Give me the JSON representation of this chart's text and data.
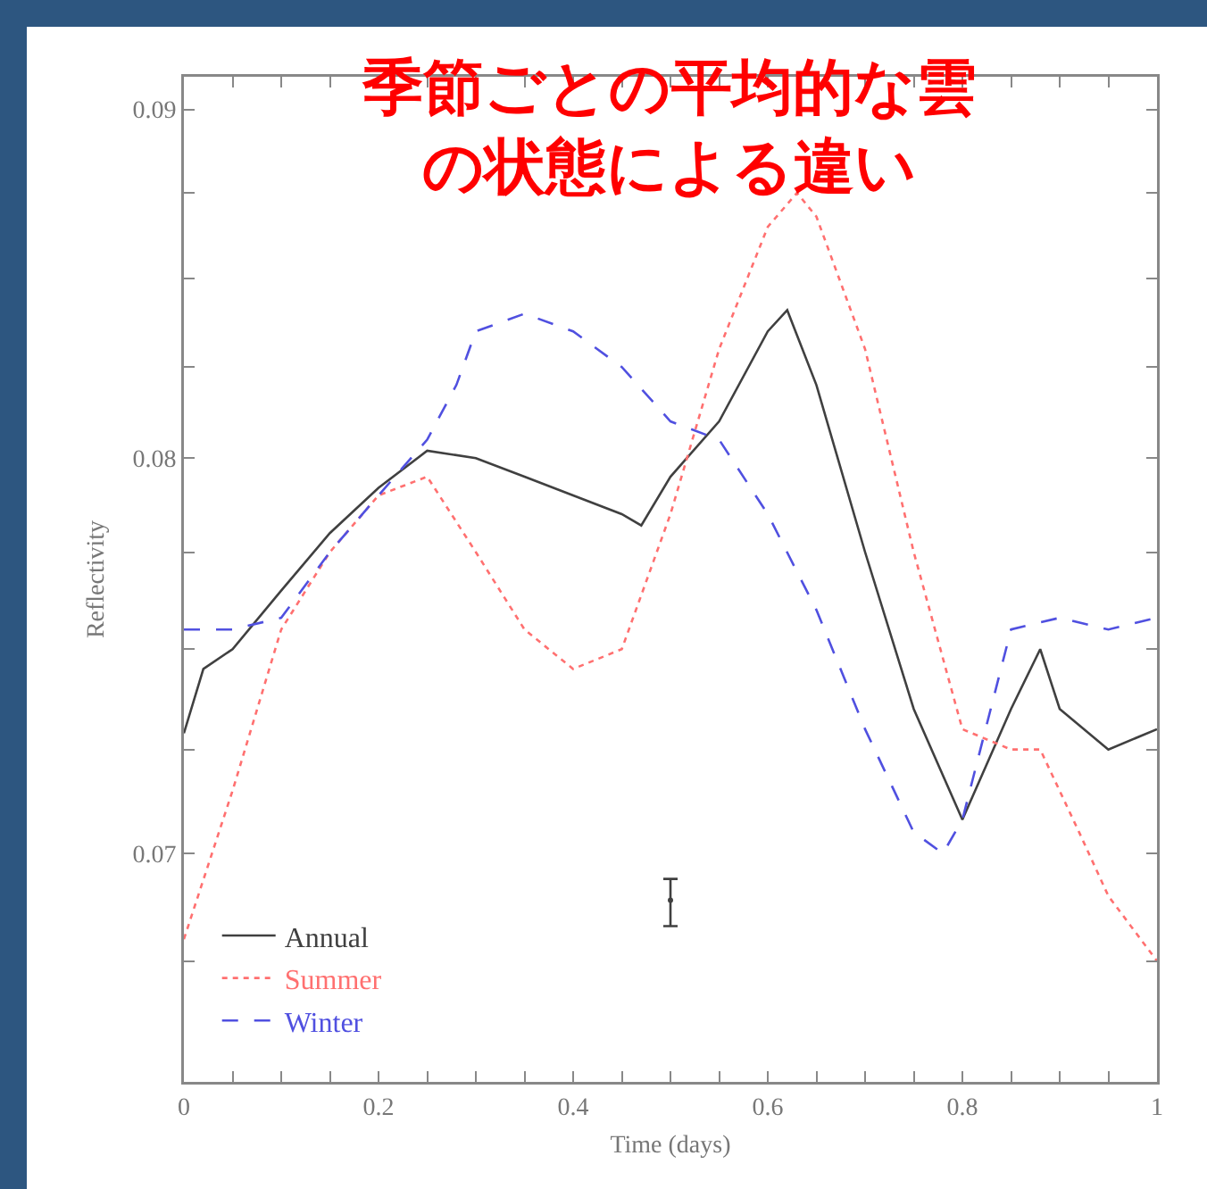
{
  "chart_data": {
    "type": "line",
    "title": "季節ごとの平均的な雲の状態による違い",
    "xlabel": "Time (days)",
    "ylabel": "Reflectivity",
    "log": "y",
    "grid": false,
    "legend": "bottom left",
    "xlim": [
      0,
      1
    ],
    "xticks": [
      0,
      {
        "value": 0.05,
        "label": null
      },
      {
        "value": 0.1,
        "label": null
      },
      {
        "value": 0.15,
        "label": null
      },
      0.2,
      {
        "value": 0.25,
        "label": null
      },
      {
        "value": 0.3,
        "label": null
      },
      {
        "value": 0.35,
        "label": null
      },
      0.4,
      {
        "value": 0.45,
        "label": null
      },
      {
        "value": 0.5,
        "label": null
      },
      {
        "value": 0.55,
        "label": null
      },
      0.6,
      {
        "value": 0.65,
        "label": null
      },
      {
        "value": 0.7,
        "label": null
      },
      {
        "value": 0.75,
        "label": null
      },
      0.8,
      {
        "value": 0.85,
        "label": null
      },
      {
        "value": 0.9,
        "label": null
      },
      {
        "value": 0.95,
        "label": null
      },
      1
    ],
    "ylim": [
      0.0648,
      0.091
    ],
    "yticks": [
      {
        "value": 0.0675,
        "label": null
      },
      0.07,
      {
        "value": 0.0725,
        "label": null
      },
      {
        "value": 0.075,
        "label": null
      },
      {
        "value": 0.0775,
        "label": null
      },
      0.08,
      {
        "value": 0.0825,
        "label": null
      },
      {
        "value": 0.085,
        "label": null
      },
      {
        "value": 0.0875,
        "label": null
      },
      0.09
    ],
    "series": [
      {
        "name": "Annual",
        "color": "#404040",
        "line_style": "solid",
        "x": [
          0,
          0.02,
          0.05,
          0.1,
          0.15,
          0.2,
          0.25,
          0.3,
          0.35,
          0.4,
          0.45,
          0.47,
          0.5,
          0.55,
          0.6,
          0.62,
          0.65,
          0.7,
          0.75,
          0.8,
          0.85,
          0.88,
          0.9,
          0.95,
          1
        ],
        "values": [
          0.0729,
          0.0745,
          0.075,
          0.0765,
          0.078,
          0.0792,
          0.0802,
          0.08,
          0.0795,
          0.079,
          0.0785,
          0.0782,
          0.0795,
          0.081,
          0.0835,
          0.0841,
          0.082,
          0.0775,
          0.0735,
          0.0708,
          0.0735,
          0.075,
          0.0735,
          0.0725,
          0.073
        ]
      },
      {
        "name": "Summer",
        "color": "#ff7070",
        "line_style": "dotted",
        "x": [
          0,
          0.05,
          0.1,
          0.15,
          0.2,
          0.25,
          0.3,
          0.35,
          0.4,
          0.45,
          0.5,
          0.55,
          0.6,
          0.63,
          0.65,
          0.7,
          0.75,
          0.8,
          0.85,
          0.88,
          0.92,
          0.95,
          1
        ],
        "values": [
          0.068,
          0.0715,
          0.0755,
          0.0775,
          0.079,
          0.0795,
          0.0775,
          0.0755,
          0.0745,
          0.075,
          0.0785,
          0.083,
          0.0865,
          0.0875,
          0.0868,
          0.083,
          0.0775,
          0.073,
          0.0725,
          0.0725,
          0.0705,
          0.069,
          0.0675
        ]
      },
      {
        "name": "Winter",
        "color": "#5050e0",
        "line_style": "dashed",
        "x": [
          0,
          0.05,
          0.1,
          0.15,
          0.2,
          0.25,
          0.28,
          0.3,
          0.35,
          0.4,
          0.45,
          0.5,
          0.55,
          0.6,
          0.65,
          0.7,
          0.75,
          0.78,
          0.8,
          0.85,
          0.9,
          0.95,
          1
        ],
        "values": [
          0.0755,
          0.0755,
          0.0758,
          0.0775,
          0.079,
          0.0805,
          0.082,
          0.0835,
          0.084,
          0.0835,
          0.0825,
          0.081,
          0.0805,
          0.0785,
          0.076,
          0.073,
          0.0705,
          0.07,
          0.0708,
          0.0755,
          0.0758,
          0.0755,
          0.0758
        ]
      },
      {
        "type": "scatter",
        "color": "#404040",
        "x": [
          0.5
        ],
        "values": [
          0.0689
        ],
        "errors": [
          [
            0.0683,
            0.0694
          ]
        ]
      }
    ]
  }
}
